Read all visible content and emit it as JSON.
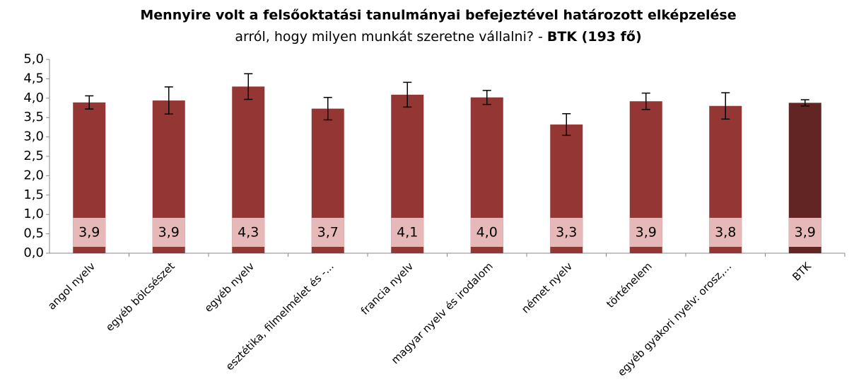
{
  "chart_data": {
    "type": "bar",
    "title": [
      "Mennyire volt a felsőoktatási tanulmányai befejeztével határozott elképzelése",
      "arról, hogy milyen munkát szeretne vállalni? -",
      "BTK (193 fő)"
    ],
    "categories": [
      "angol nyelv",
      "egyéb bölcsészet",
      "egyéb nyelv",
      "esztétika, filmelmélet és -...",
      "francia nyelv",
      "magyar nyelv és irodalom",
      "német nyelv",
      "történelem",
      "egyéb gyakori nyelv: orosz,...",
      "BTK"
    ],
    "values": [
      3.89,
      3.94,
      4.3,
      3.73,
      4.09,
      4.02,
      3.32,
      3.92,
      3.8,
      3.88
    ],
    "value_labels": [
      "3,9",
      "3,9",
      "4,3",
      "3,7",
      "4,1",
      "4,0",
      "3,3",
      "3,9",
      "3,8",
      "3,9"
    ],
    "errors": [
      0.17,
      0.35,
      0.33,
      0.29,
      0.32,
      0.18,
      0.28,
      0.21,
      0.34,
      0.08
    ],
    "colors": [
      "#943634",
      "#943634",
      "#943634",
      "#943634",
      "#943634",
      "#943634",
      "#943634",
      "#943634",
      "#943634",
      "#632523"
    ],
    "ylim": [
      0,
      5
    ],
    "yticks": [
      {
        "value": 0,
        "label": "0,0"
      },
      {
        "value": 0.5,
        "label": "0,5"
      },
      {
        "value": 1,
        "label": "1,0"
      },
      {
        "value": 1.5,
        "label": "1,5"
      },
      {
        "value": 2,
        "label": "2,0"
      },
      {
        "value": 2.5,
        "label": "2,5"
      },
      {
        "value": 3,
        "label": "3,0"
      },
      {
        "value": 3.5,
        "label": "3,5"
      },
      {
        "value": 4,
        "label": "4,0"
      },
      {
        "value": 4.5,
        "label": "4,5"
      },
      {
        "value": 5,
        "label": "5,0"
      }
    ]
  }
}
